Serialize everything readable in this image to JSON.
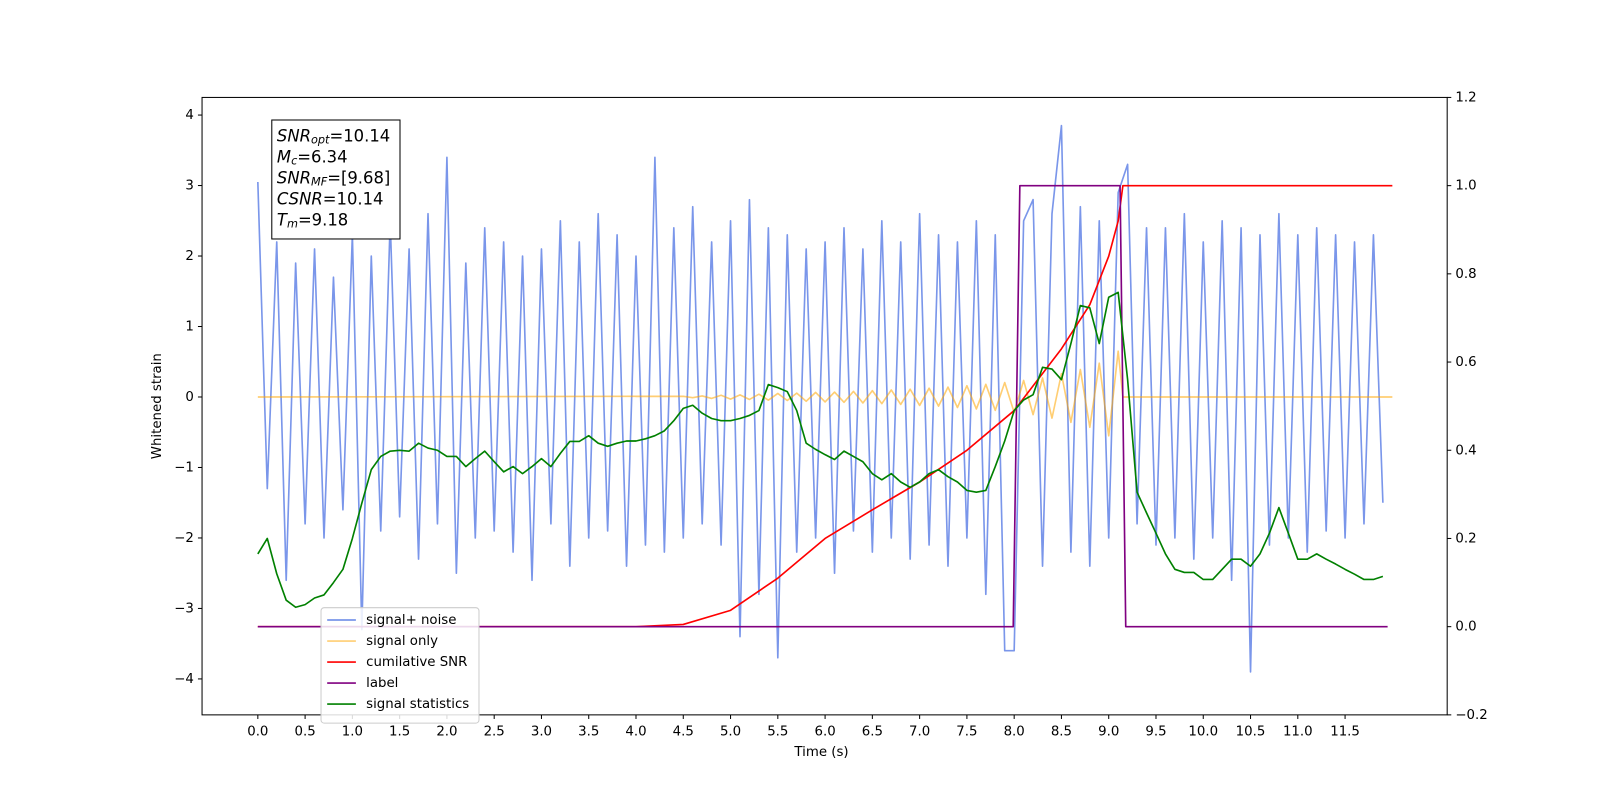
{
  "chart_data": {
    "type": "line",
    "xlabel": "Time (s)",
    "ylabel": "Whitened strain",
    "xlim": [
      -0.59,
      12.58
    ],
    "xticks": [
      {
        "value": 0,
        "label": "0.0"
      },
      0.5,
      {
        "value": 1,
        "label": "1.0"
      },
      1.5,
      {
        "value": 2,
        "label": "2.0"
      },
      2.5,
      {
        "value": 3,
        "label": "3.0"
      },
      3.5,
      {
        "value": 4,
        "label": "4.0"
      },
      4.5,
      {
        "value": 5,
        "label": "5.0"
      },
      5.5,
      {
        "value": 6,
        "label": "6.0"
      },
      6.5,
      {
        "value": 7,
        "label": "7.0"
      },
      7.5,
      {
        "value": 8,
        "label": "8.0"
      },
      8.5,
      {
        "value": 9,
        "label": "9.0"
      },
      9.5,
      {
        "value": 10,
        "label": "10.0"
      },
      10.5,
      {
        "value": 11,
        "label": "11.0"
      },
      11.5
    ],
    "ylim": [
      -4.51,
      4.25
    ],
    "yticks": [
      {
        "value": -4,
        "label": "−4"
      },
      {
        "value": -3,
        "label": "−3"
      },
      {
        "value": -2,
        "label": "−2"
      },
      {
        "value": -1,
        "label": "−1"
      },
      0,
      1,
      2,
      3,
      4
    ],
    "y2lim": [
      -0.2,
      1.2
    ],
    "y2ticks": [
      {
        "value": -0.2,
        "label": "−0.2"
      },
      {
        "value": 0,
        "label": "0.0"
      },
      0.2,
      0.4,
      0.6,
      0.8,
      {
        "value": 1,
        "label": "1.0"
      },
      1.2
    ],
    "legend": "lower left",
    "annotation": [
      {
        "main": "SNR",
        "sub": "opt",
        "rest": "=10.14"
      },
      {
        "main": "M",
        "sub": "c",
        "rest": "=6.34"
      },
      {
        "main": "SNR",
        "sub": "MF",
        "rest": "=[9.68]"
      },
      {
        "main": "CSNR",
        "rest": "=10.14"
      },
      {
        "main": "T",
        "sub": "m",
        "rest": "=9.18"
      }
    ],
    "x": [
      0,
      0.1,
      0.2,
      0.3,
      0.4,
      0.5,
      0.6,
      0.7,
      0.8,
      0.9,
      1,
      1.1,
      1.2,
      1.3,
      1.4,
      1.5,
      1.6,
      1.7,
      1.8,
      1.9,
      2,
      2.1,
      2.2,
      2.3,
      2.4,
      2.5,
      2.6,
      2.7,
      2.8,
      2.9,
      3,
      3.1,
      3.2,
      3.3,
      3.4,
      3.5,
      3.6,
      3.7,
      3.8,
      3.9,
      4,
      4.1,
      4.2,
      4.3,
      4.4,
      4.5,
      4.6,
      4.7,
      4.8,
      4.9,
      5,
      5.1,
      5.2,
      5.3,
      5.4,
      5.5,
      5.6,
      5.7,
      5.8,
      5.9,
      6,
      6.1,
      6.2,
      6.3,
      6.4,
      6.5,
      6.6,
      6.7,
      6.8,
      6.9,
      7,
      7.1,
      7.2,
      7.3,
      7.4,
      7.5,
      7.6,
      7.7,
      7.8,
      7.9,
      8,
      8.1,
      8.2,
      8.3,
      8.4,
      8.5,
      8.6,
      8.7,
      8.8,
      8.9,
      9,
      9.1,
      9.2,
      9.3,
      9.4,
      9.5,
      9.6,
      9.7,
      9.8,
      9.9,
      10,
      10.1,
      10.2,
      10.3,
      10.4,
      10.5,
      10.6,
      10.7,
      10.8,
      10.9,
      11,
      11.1,
      11.2,
      11.3,
      11.4,
      11.5,
      11.6,
      11.7,
      11.8,
      11.9
    ],
    "series": [
      {
        "name": "signal+ noise",
        "color": "#4169e1",
        "opacity": 0.7,
        "values": [
          3.05,
          -1.3,
          2.2,
          -2.6,
          1.9,
          -1.8,
          2.1,
          -2.0,
          1.7,
          -1.6,
          2.3,
          -3.3,
          2.0,
          -1.9,
          2.5,
          -1.7,
          2.1,
          -2.3,
          2.6,
          -1.8,
          3.4,
          -2.5,
          1.9,
          -2.0,
          2.4,
          -1.9,
          2.2,
          -2.2,
          2.0,
          -2.6,
          2.1,
          -1.8,
          2.5,
          -2.4,
          2.2,
          -2.0,
          2.6,
          -1.9,
          2.3,
          -2.4,
          2.0,
          -2.1,
          3.4,
          -2.2,
          2.4,
          -2.0,
          2.7,
          -1.8,
          2.2,
          -2.1,
          2.5,
          -3.4,
          2.8,
          -2.8,
          2.4,
          -3.7,
          2.3,
          -2.2,
          2.1,
          -2.0,
          2.2,
          -2.5,
          2.4,
          -1.9,
          2.1,
          -2.2,
          2.5,
          -2.0,
          2.2,
          -2.3,
          2.6,
          -2.1,
          2.3,
          -2.4,
          2.2,
          -2.0,
          2.5,
          -2.8,
          2.3,
          -3.6,
          -3.6,
          2.5,
          2.8,
          -2.4,
          2.6,
          3.85,
          -2.2,
          2.7,
          -2.4,
          2.5,
          -2.0,
          2.9,
          3.3,
          -1.8,
          2.4,
          -2.1,
          2.4,
          -2.0,
          2.6,
          -2.3,
          2.2,
          -2.0,
          2.5,
          -2.6,
          2.4,
          -3.9,
          2.3,
          -2.1,
          2.6,
          -2.0,
          2.3,
          -2.2,
          2.4,
          -1.9,
          2.3,
          -2.0,
          2.2,
          -1.8,
          2.3,
          -1.5
        ]
      },
      {
        "name": "signal only",
        "color": "#ffa500",
        "opacity": 0.55,
        "x": [
          0,
          4.5,
          4.6,
          4.7,
          4.8,
          4.9,
          5,
          5.1,
          5.2,
          5.3,
          5.4,
          5.5,
          5.6,
          5.7,
          5.8,
          5.9,
          6,
          6.1,
          6.2,
          6.3,
          6.4,
          6.5,
          6.6,
          6.7,
          6.8,
          6.9,
          7,
          7.1,
          7.2,
          7.3,
          7.4,
          7.5,
          7.6,
          7.7,
          7.8,
          7.9,
          8,
          8.1,
          8.2,
          8.3,
          8.4,
          8.5,
          8.6,
          8.7,
          8.8,
          8.9,
          9,
          9.1,
          9.15,
          12
        ],
        "values": [
          0,
          0.01,
          -0.01,
          0.015,
          -0.02,
          0.025,
          -0.03,
          0.03,
          -0.035,
          0.04,
          -0.045,
          0.05,
          -0.05,
          0.055,
          -0.06,
          0.065,
          -0.07,
          0.07,
          -0.075,
          0.08,
          -0.085,
          0.09,
          -0.095,
          0.1,
          -0.105,
          0.11,
          -0.12,
          0.125,
          -0.13,
          0.14,
          -0.15,
          0.16,
          -0.17,
          0.18,
          -0.19,
          0.205,
          -0.22,
          0.235,
          -0.25,
          0.27,
          -0.3,
          0.33,
          -0.36,
          0.39,
          -0.43,
          0.48,
          -0.55,
          0.65,
          0,
          0
        ]
      },
      {
        "name": "cumilative SNR",
        "color": "#ff0000",
        "axis": "y2",
        "x": [
          0,
          4,
          4.5,
          5,
          5.5,
          6,
          6.5,
          7,
          7.5,
          8,
          8.5,
          8.8,
          9,
          9.1,
          9.15,
          9.2,
          12
        ],
        "values": [
          0,
          0,
          0.005,
          0.037,
          0.11,
          0.2,
          0.265,
          0.328,
          0.4,
          0.49,
          0.63,
          0.73,
          0.84,
          0.92,
          1,
          1,
          1
        ]
      },
      {
        "name": "label",
        "color": "#800080",
        "axis": "y2",
        "x": [
          0,
          7.99,
          8.06,
          9.12,
          9.18,
          11.95
        ],
        "values": [
          0,
          0,
          1,
          1,
          0,
          0
        ]
      },
      {
        "name": "signal statistics",
        "color": "#008000",
        "axis": "y2",
        "values": [
          0.165,
          0.2,
          0.12,
          0.06,
          0.044,
          0.05,
          0.065,
          0.072,
          0.1,
          0.13,
          0.2,
          0.28,
          0.356,
          0.386,
          0.398,
          0.4,
          0.398,
          0.416,
          0.405,
          0.4,
          0.386,
          0.386,
          0.363,
          0.381,
          0.398,
          0.374,
          0.351,
          0.363,
          0.347,
          0.363,
          0.381,
          0.363,
          0.393,
          0.42,
          0.42,
          0.433,
          0.416,
          0.409,
          0.416,
          0.421,
          0.421,
          0.426,
          0.433,
          0.444,
          0.467,
          0.495,
          0.502,
          0.484,
          0.472,
          0.467,
          0.467,
          0.472,
          0.479,
          0.49,
          0.549,
          0.542,
          0.533,
          0.49,
          0.416,
          0.402,
          0.39,
          0.379,
          0.398,
          0.386,
          0.374,
          0.347,
          0.333,
          0.347,
          0.328,
          0.316,
          0.328,
          0.347,
          0.356,
          0.34,
          0.328,
          0.309,
          0.305,
          0.309,
          0.363,
          0.421,
          0.49,
          0.514,
          0.526,
          0.588,
          0.584,
          0.56,
          0.642,
          0.728,
          0.723,
          0.642,
          0.747,
          0.758,
          0.56,
          0.305,
          0.258,
          0.212,
          0.165,
          0.13,
          0.123,
          0.123,
          0.107,
          0.107,
          0.13,
          0.153,
          0.153,
          0.137,
          0.165,
          0.212,
          0.27,
          0.212,
          0.153,
          0.153,
          0.165,
          0.153,
          0.142,
          0.13,
          0.119,
          0.107,
          0.107,
          0.114
        ]
      }
    ]
  }
}
